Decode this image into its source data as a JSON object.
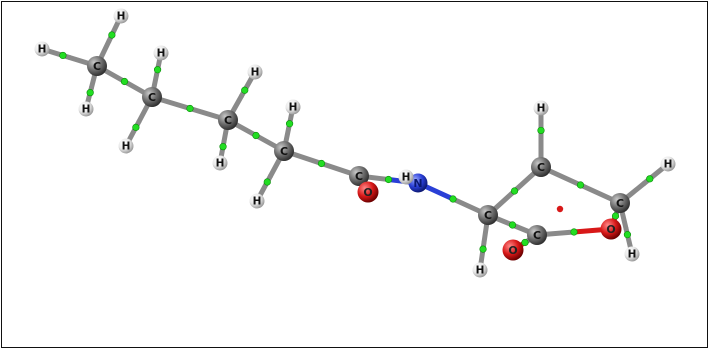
{
  "molecule": {
    "atoms": [
      {
        "id": "c1",
        "element": "C",
        "label": "C"
      },
      {
        "id": "c2",
        "element": "C",
        "label": "C"
      },
      {
        "id": "c3",
        "element": "C",
        "label": "C"
      },
      {
        "id": "c4",
        "element": "C",
        "label": "C"
      },
      {
        "id": "c5",
        "element": "C",
        "label": "C"
      },
      {
        "id": "o1",
        "element": "O",
        "label": "O"
      },
      {
        "id": "n1",
        "element": "N",
        "label": "N"
      },
      {
        "id": "c6",
        "element": "C",
        "label": "C"
      },
      {
        "id": "c7",
        "element": "C",
        "label": "C"
      },
      {
        "id": "c8",
        "element": "C",
        "label": "C"
      },
      {
        "id": "c9",
        "element": "C",
        "label": "C"
      },
      {
        "id": "o2",
        "element": "O",
        "label": "O"
      },
      {
        "id": "o3",
        "element": "O",
        "label": "O"
      },
      {
        "id": "h1",
        "element": "H",
        "label": "H"
      },
      {
        "id": "h2",
        "element": "H",
        "label": "H"
      },
      {
        "id": "h3",
        "element": "H",
        "label": "H"
      },
      {
        "id": "h4",
        "element": "H",
        "label": "H"
      },
      {
        "id": "h5",
        "element": "H",
        "label": "H"
      },
      {
        "id": "h6",
        "element": "H",
        "label": "H"
      },
      {
        "id": "h7",
        "element": "H",
        "label": "H"
      },
      {
        "id": "h8",
        "element": "H",
        "label": "H"
      },
      {
        "id": "h9",
        "element": "H",
        "label": "H"
      },
      {
        "id": "h10",
        "element": "H",
        "label": "H"
      },
      {
        "id": "h11",
        "element": "H",
        "label": "H"
      },
      {
        "id": "h12",
        "element": "H",
        "label": "H"
      },
      {
        "id": "h13",
        "element": "H",
        "label": "H"
      },
      {
        "id": "h14",
        "element": "H",
        "label": "H"
      },
      {
        "id": "h15",
        "element": "H",
        "label": "H"
      },
      {
        "id": "h16",
        "element": "H",
        "label": "H"
      }
    ],
    "bonds": [
      [
        "c1",
        "h1"
      ],
      [
        "c1",
        "h2"
      ],
      [
        "c1",
        "h3"
      ],
      [
        "c1",
        "c2"
      ],
      [
        "c2",
        "h4"
      ],
      [
        "c2",
        "h5"
      ],
      [
        "c2",
        "c3"
      ],
      [
        "c3",
        "h6"
      ],
      [
        "c3",
        "h7"
      ],
      [
        "c3",
        "c4"
      ],
      [
        "c4",
        "h8"
      ],
      [
        "c4",
        "h9"
      ],
      [
        "c4",
        "c5"
      ],
      [
        "c5",
        "o1"
      ],
      [
        "c5",
        "n1"
      ],
      [
        "n1",
        "h10"
      ],
      [
        "n1",
        "c6"
      ],
      [
        "c6",
        "h11"
      ],
      [
        "c6",
        "c7"
      ],
      [
        "c6",
        "c8"
      ],
      [
        "c7",
        "h12"
      ],
      [
        "c7",
        "c9"
      ],
      [
        "c8",
        "o2"
      ],
      [
        "c8",
        "o3"
      ],
      [
        "o3",
        "c9"
      ],
      [
        "c9",
        "h13"
      ],
      [
        "c9",
        "h14"
      ]
    ],
    "ring_critical_point": true
  },
  "colors": {
    "carbon": "#6e6e6e",
    "hydrogen": "#e8e8e8",
    "oxygen": "#d81818",
    "nitrogen": "#2a3fd6",
    "bond": "#8a8a8a",
    "critical_point": "#22dd22"
  }
}
